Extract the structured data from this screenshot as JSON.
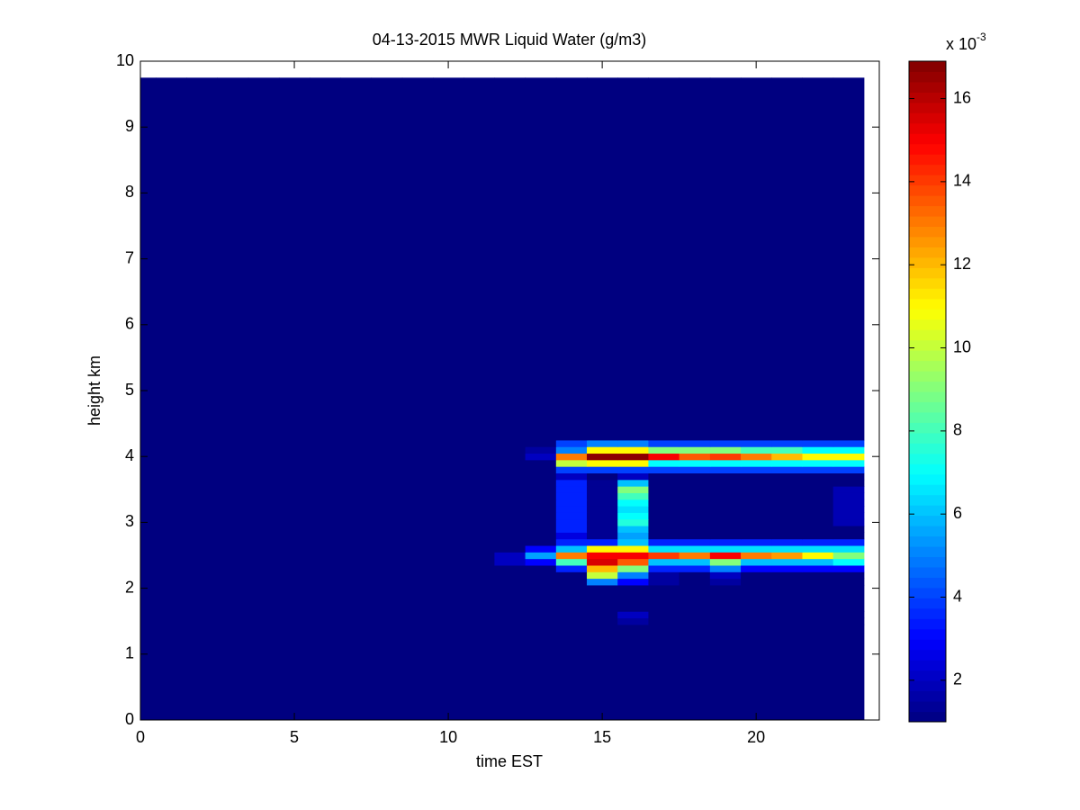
{
  "chart_data": {
    "type": "heatmap",
    "title": "04-13-2015 MWR Liquid Water (g/m3)",
    "x_label": "time EST",
    "y_label": "height km",
    "xlim": [
      0,
      24
    ],
    "xticks": [
      0,
      5,
      10,
      15,
      20
    ],
    "ylim": [
      0,
      10
    ],
    "yticks": [
      0,
      1,
      2,
      3,
      4,
      5,
      6,
      7,
      8,
      9,
      10
    ],
    "x_edges": [
      0,
      0.5,
      1.5,
      2.5,
      3.5,
      4.5,
      5.5,
      6.5,
      7.5,
      8.5,
      9.5,
      10.5,
      11.5,
      12.5,
      13.5,
      14.5,
      15.5,
      16.5,
      17.5,
      18.5,
      19.5,
      20.5,
      21.5,
      22.5,
      23.5
    ],
    "y_edges": [
      0,
      1.45,
      1.55,
      1.65,
      2.05,
      2.15,
      2.25,
      2.35,
      2.45,
      2.55,
      2.65,
      2.75,
      2.85,
      2.95,
      3.05,
      3.15,
      3.25,
      3.35,
      3.45,
      3.55,
      3.65,
      3.75,
      3.85,
      3.95,
      4.05,
      4.15,
      4.25,
      9.75
    ],
    "values": [
      [
        1,
        1,
        1,
        1,
        1,
        1,
        1,
        1,
        1,
        1,
        1,
        1,
        1,
        1,
        1,
        1,
        1,
        1,
        1,
        1,
        1,
        1,
        1,
        1
      ],
      [
        1,
        1,
        1,
        1,
        1,
        1,
        1,
        1,
        1,
        1,
        1,
        1,
        1,
        1,
        1,
        1,
        1.5,
        1,
        1,
        1,
        1,
        1,
        1,
        1
      ],
      [
        1,
        1,
        1,
        1,
        1,
        1,
        1,
        1,
        1,
        1,
        1,
        1,
        1,
        1,
        1,
        1,
        2,
        1,
        1,
        1,
        1,
        1,
        1,
        1
      ],
      [
        1,
        1,
        1,
        1,
        1,
        1,
        1,
        1,
        1,
        1,
        1,
        1,
        1,
        1,
        1,
        1,
        1,
        1,
        1,
        1,
        1,
        1,
        1,
        1
      ],
      [
        1,
        1,
        1,
        1,
        1,
        1,
        1,
        1,
        1,
        1,
        1,
        1,
        1,
        1,
        1,
        5,
        3,
        1.5,
        1,
        1.5,
        1,
        1,
        1,
        1
      ],
      [
        1,
        1,
        1,
        1,
        1,
        1,
        1,
        1,
        1,
        1,
        1,
        1,
        1,
        1,
        1,
        10,
        5,
        1.5,
        1,
        2,
        1,
        1,
        1,
        1
      ],
      [
        1,
        1,
        1,
        1,
        1,
        1,
        1,
        1,
        1,
        1,
        1,
        1,
        1,
        1,
        3.5,
        12,
        9,
        3.5,
        3.5,
        5,
        3,
        3,
        3,
        3
      ],
      [
        1,
        1,
        1,
        1,
        1,
        1,
        1,
        1,
        1,
        1,
        1,
        1,
        2,
        3,
        8,
        15.5,
        13.5,
        6,
        6,
        9,
        6,
        6,
        6,
        7
      ],
      [
        1,
        1,
        1,
        1,
        1,
        1,
        1,
        1,
        1,
        1,
        1,
        1,
        2,
        5.5,
        13,
        15,
        15,
        14,
        13,
        15,
        13,
        12.5,
        11,
        9
      ],
      [
        1,
        1,
        1,
        1,
        1,
        1,
        1,
        1,
        1,
        1,
        1,
        1,
        1,
        3,
        6,
        11,
        11,
        6.5,
        6.5,
        6.5,
        6.5,
        6.5,
        6.5,
        6.5
      ],
      [
        1,
        1,
        1,
        1,
        1,
        1,
        1,
        1,
        1,
        1,
        1,
        1,
        1,
        1,
        3.5,
        3.5,
        6,
        3.5,
        3.5,
        3.5,
        3.5,
        3.5,
        3.5,
        3.5
      ],
      [
        1,
        1,
        1,
        1,
        1,
        1,
        1,
        1,
        1,
        1,
        1,
        1,
        1,
        1,
        2.5,
        1.3,
        5.5,
        1,
        1,
        1,
        1,
        1,
        1,
        1
      ],
      [
        1,
        1,
        1,
        1,
        1,
        1,
        1,
        1,
        1,
        1,
        1,
        1,
        1,
        1,
        3.5,
        1.3,
        6,
        1,
        1,
        1,
        1,
        1,
        1,
        1
      ],
      [
        1,
        1,
        1,
        1,
        1,
        1,
        1,
        1,
        1,
        1,
        1,
        1,
        1,
        1,
        3.5,
        1.3,
        7.5,
        1,
        1,
        1,
        1,
        1,
        1,
        1.8
      ],
      [
        1,
        1,
        1,
        1,
        1,
        1,
        1,
        1,
        1,
        1,
        1,
        1,
        1,
        1,
        3.5,
        1.3,
        7,
        1,
        1,
        1,
        1,
        1,
        1,
        1.8
      ],
      [
        1,
        1,
        1,
        1,
        1,
        1,
        1,
        1,
        1,
        1,
        1,
        1,
        1,
        1,
        3.5,
        1.3,
        6.5,
        1,
        1,
        1,
        1,
        1,
        1,
        1.8
      ],
      [
        1,
        1,
        1,
        1,
        1,
        1,
        1,
        1,
        1,
        1,
        1,
        1,
        1,
        1,
        3.5,
        1.3,
        7,
        1,
        1,
        1,
        1,
        1,
        1,
        1.8
      ],
      [
        1,
        1,
        1,
        1,
        1,
        1,
        1,
        1,
        1,
        1,
        1,
        1,
        1,
        1,
        3.5,
        1.3,
        8,
        1,
        1,
        1,
        1,
        1,
        1,
        1.8
      ],
      [
        1,
        1,
        1,
        1,
        1,
        1,
        1,
        1,
        1,
        1,
        1,
        1,
        1,
        1,
        3.5,
        1.3,
        9,
        1,
        1,
        1,
        1,
        1,
        1,
        1.8
      ],
      [
        1,
        1,
        1,
        1,
        1,
        1,
        1,
        1,
        1,
        1,
        1,
        1,
        1,
        1,
        3.5,
        1.3,
        6,
        1,
        1,
        1,
        1,
        1,
        1,
        1
      ],
      [
        1,
        1,
        1,
        1,
        1,
        1,
        1,
        1,
        1,
        1,
        1,
        1,
        1,
        1,
        2,
        1,
        2,
        1,
        1,
        1,
        1,
        1,
        1,
        1
      ],
      [
        1,
        1,
        1,
        1,
        1,
        1,
        1,
        1,
        1,
        1,
        1,
        1,
        1,
        1,
        4,
        4,
        4,
        4,
        4,
        4,
        4,
        4,
        4,
        4
      ],
      [
        1,
        1,
        1,
        1,
        1,
        1,
        1,
        1,
        1,
        1,
        1,
        1,
        1,
        1,
        10,
        11,
        11,
        7,
        7,
        7,
        7,
        7,
        7,
        7
      ],
      [
        1,
        1,
        1,
        1,
        1,
        1,
        1,
        1,
        1,
        1,
        1,
        1,
        1,
        2,
        13,
        16.7,
        16.7,
        15,
        13.5,
        14,
        13,
        12,
        11,
        11
      ],
      [
        1,
        1,
        1,
        1,
        1,
        1,
        1,
        1,
        1,
        1,
        1,
        1,
        1,
        1.5,
        5,
        11,
        11,
        9,
        9,
        9,
        8,
        8,
        7,
        7
      ],
      [
        1,
        1,
        1,
        1,
        1,
        1,
        1,
        1,
        1,
        1,
        1,
        1,
        1,
        1,
        4,
        5,
        5,
        4,
        4,
        4,
        4,
        4,
        4,
        4
      ],
      [
        1,
        1,
        1,
        1,
        1,
        1,
        1,
        1,
        1,
        1,
        1,
        1,
        1,
        1,
        1,
        1,
        1,
        1,
        1,
        1,
        1,
        1,
        1,
        1
      ]
    ],
    "clim": [
      1,
      16.9
    ],
    "colorbar_ticks": [
      2,
      4,
      6,
      8,
      10,
      12,
      14,
      16
    ],
    "colorbar_multiplier": "x 10",
    "colorbar_exponent": "-3",
    "colormap": "jet"
  }
}
